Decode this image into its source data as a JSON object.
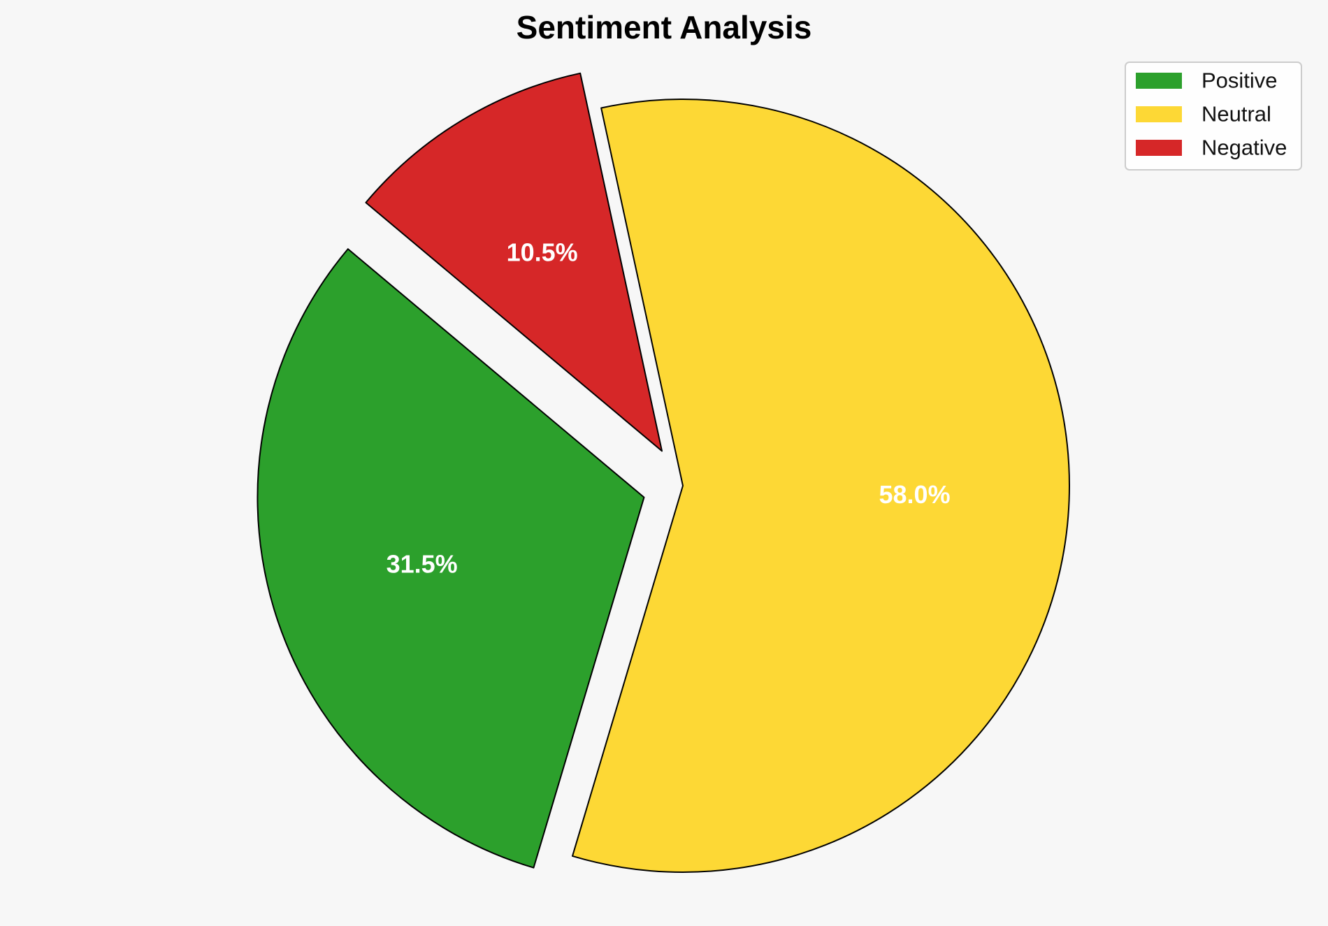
{
  "chart_data": {
    "type": "pie",
    "title": "Sentiment Analysis",
    "categories": [
      "Positive",
      "Neutral",
      "Negative"
    ],
    "values": [
      31.5,
      58.0,
      10.5
    ],
    "value_labels": [
      "31.5%",
      "58.0%",
      "10.5%"
    ],
    "colors": [
      "#2ca02c",
      "#fdd835",
      "#d62728"
    ],
    "exploded": [
      true,
      false,
      true
    ],
    "start_angle_deg": 140,
    "legend": {
      "placement": "top-right",
      "entries": [
        "Positive",
        "Neutral",
        "Negative"
      ]
    }
  }
}
